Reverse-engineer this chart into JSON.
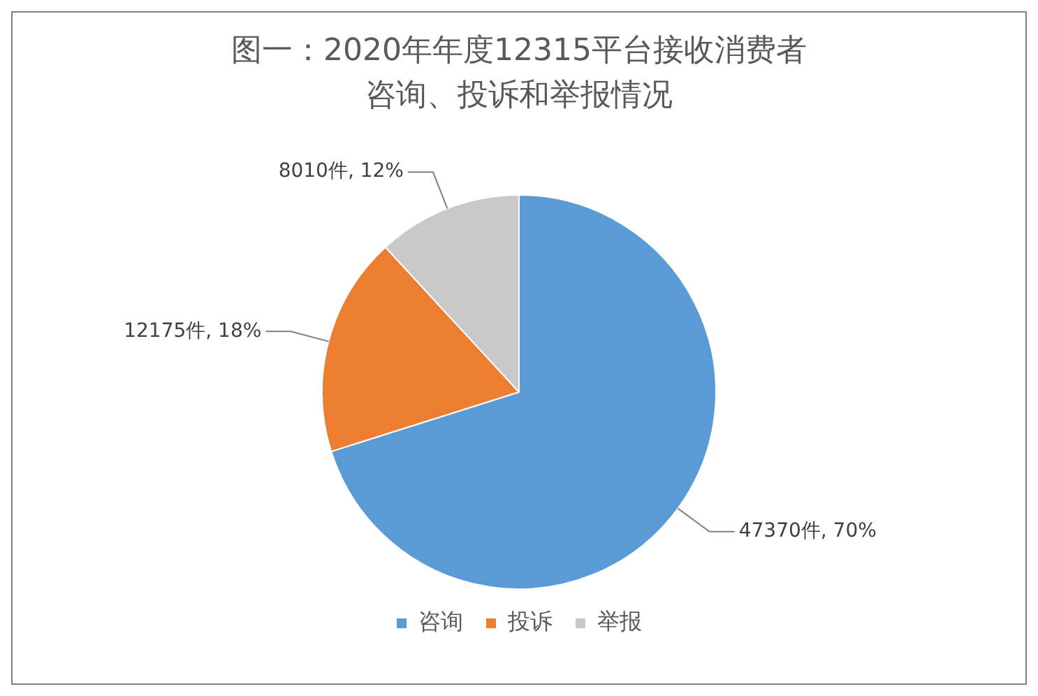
{
  "chart_data": {
    "type": "pie",
    "title": "图一：2020年年度12315平台接收消费者咨询、投诉和举报情况",
    "categories": [
      "咨询",
      "投诉",
      "举报"
    ],
    "values": [
      47370,
      12175,
      8010
    ],
    "colors": [
      "#5b9bd5",
      "#ed7d31",
      "#c9c9c9"
    ],
    "value_labels": [
      "47370件, 70%",
      "12175件, 18%",
      "8010件, 12%"
    ],
    "legend": "bottom"
  }
}
